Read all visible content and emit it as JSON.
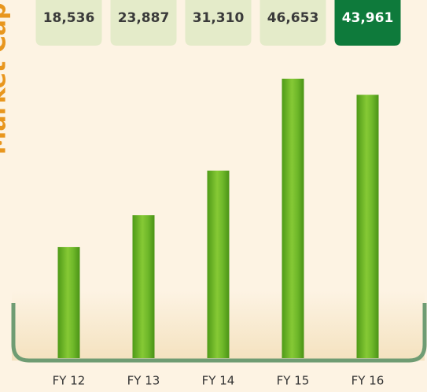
{
  "chart_data": {
    "type": "bar",
    "title": "Market Cap",
    "categories": [
      "FY 12",
      "FY 13",
      "FY 14",
      "FY 15",
      "FY 16"
    ],
    "values": [
      18536,
      23887,
      31310,
      46653,
      43961
    ],
    "value_labels": [
      "18,536",
      "23,887",
      "31,310",
      "46,653",
      "43,961"
    ],
    "label_box_colors": [
      "#e4ebc9",
      "#e4ebc9",
      "#e4ebc9",
      "#e4ebc9",
      "#0e7a3b"
    ],
    "label_text_colors": [
      "#3a3a3a",
      "#3a3a3a",
      "#3a3a3a",
      "#3a3a3a",
      "#ffffff"
    ],
    "ylim": [
      0,
      50000
    ]
  }
}
